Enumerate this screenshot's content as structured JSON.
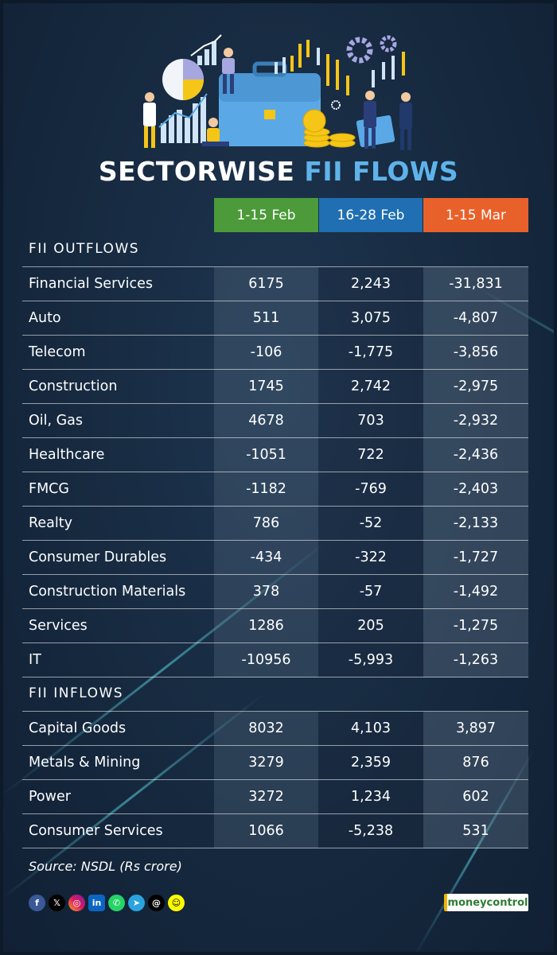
{
  "title": {
    "part1": "SECTORWISE",
    "part2": "FII FLOWS"
  },
  "colors": {
    "col1": "#4c9a3a",
    "col2": "#1f6fb2",
    "col3": "#e8612a",
    "accent_title": "#5fb3ea",
    "background": "#16293f"
  },
  "chart_data": {
    "type": "table",
    "columns": [
      "1-15 Feb",
      "16-28 Feb",
      "1-15 Mar"
    ],
    "sections": [
      {
        "label": "FII OUTFLOWS",
        "rows": [
          {
            "sector": "Financial Services",
            "values": [
              "6175",
              "2,243",
              "-31,831"
            ]
          },
          {
            "sector": "Auto",
            "values": [
              "511",
              "3,075",
              "-4,807"
            ]
          },
          {
            "sector": "Telecom",
            "values": [
              "-106",
              "-1,775",
              "-3,856"
            ]
          },
          {
            "sector": "Construction",
            "values": [
              "1745",
              "2,742",
              "-2,975"
            ]
          },
          {
            "sector": "Oil, Gas",
            "values": [
              "4678",
              "703",
              "-2,932"
            ]
          },
          {
            "sector": "Healthcare",
            "values": [
              "-1051",
              "722",
              "-2,436"
            ]
          },
          {
            "sector": "FMCG",
            "values": [
              "-1182",
              "-769",
              "-2,403"
            ]
          },
          {
            "sector": "Realty",
            "values": [
              "786",
              "-52",
              "-2,133"
            ]
          },
          {
            "sector": "Consumer Durables",
            "values": [
              "-434",
              "-322",
              "-1,727"
            ]
          },
          {
            "sector": "Construction Materials",
            "values": [
              "378",
              "-57",
              "-1,492"
            ]
          },
          {
            "sector": "Services",
            "values": [
              "1286",
              "205",
              "-1,275"
            ]
          },
          {
            "sector": "IT",
            "values": [
              "-10956",
              "-5,993",
              "-1,263"
            ]
          }
        ]
      },
      {
        "label": "FII INFLOWS",
        "rows": [
          {
            "sector": "Capital Goods",
            "values": [
              "8032",
              "4,103",
              "3,897"
            ]
          },
          {
            "sector": "Metals & Mining",
            "values": [
              "3279",
              "2,359",
              "876"
            ]
          },
          {
            "sector": "Power",
            "values": [
              "3272",
              "1,234",
              "602"
            ]
          },
          {
            "sector": "Consumer Services",
            "values": [
              "1066",
              "-5,238",
              "531"
            ]
          }
        ]
      }
    ]
  },
  "source": "Source: NSDL (Rs crore)",
  "social_icons": [
    "facebook-icon",
    "x-icon",
    "instagram-icon",
    "linkedin-icon",
    "whatsapp-icon",
    "telegram-icon",
    "threads-icon",
    "snapchat-icon"
  ],
  "brand": "moneycontrol"
}
